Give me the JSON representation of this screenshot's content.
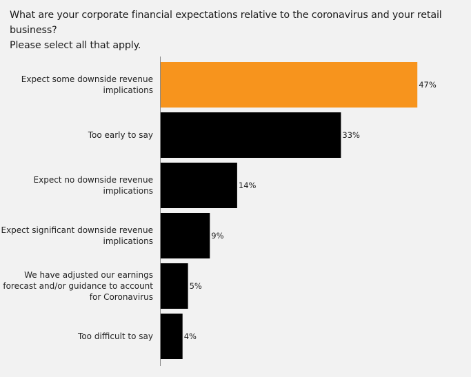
{
  "title_line1": "What are your corporate financial expectations relative to the coronavirus and your retail business?",
  "title_line2": "Please select all that apply.",
  "colors": {
    "highlight": "#f7941d",
    "default": "#000000",
    "axis": "#888888",
    "background": "#f2f2f2"
  },
  "chart_data": {
    "type": "bar",
    "orientation": "horizontal",
    "title": "What are your corporate financial expectations relative to the coronavirus and your retail business? Please select all that apply.",
    "categories": [
      [
        "Expect some downside revenue",
        "implications"
      ],
      [
        "Too early to say"
      ],
      [
        "Expect no downside revenue",
        "implications"
      ],
      [
        "Expect significant downside revenue",
        "implications"
      ],
      [
        "We have adjusted our earnings",
        "forecast and/or guidance to account",
        "for Coronavirus"
      ],
      [
        "Too difficult to say"
      ]
    ],
    "values": [
      47,
      33,
      14,
      9,
      5,
      4
    ],
    "value_labels": [
      "47%",
      "33%",
      "14%",
      "9%",
      "5%",
      "4%"
    ],
    "highlight_index": 0,
    "xlim": [
      0,
      50
    ],
    "unit": "%",
    "grid": false,
    "legend": "none"
  }
}
